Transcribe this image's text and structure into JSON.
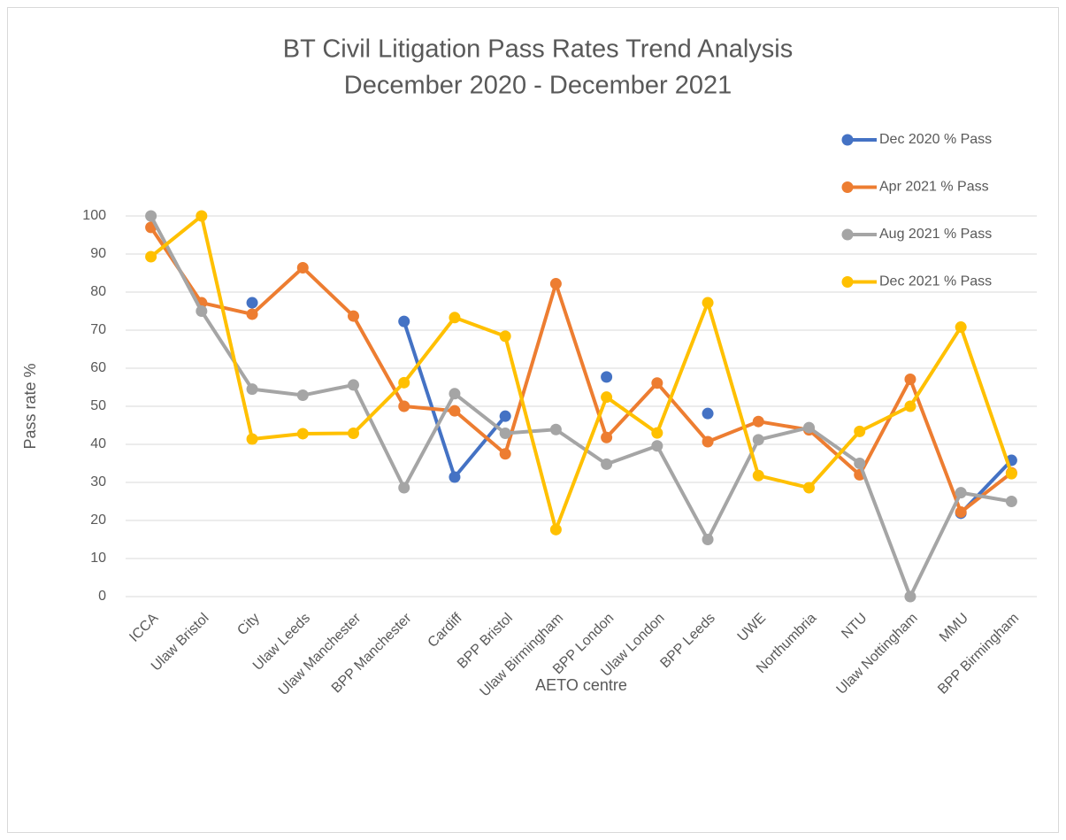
{
  "chart_data": {
    "type": "line",
    "title": "BT Civil Litigation Pass Rates Trend Analysis",
    "subtitle": "December 2020 - December 2021",
    "x_label": "AETO centre",
    "y_label": "Pass rate %",
    "categories": [
      "ICCA",
      "Ulaw Bristol",
      "City",
      "Ulaw Leeds",
      "Ulaw Manchester",
      "BPP Manchester",
      "Cardiff",
      "BPP Bristol",
      "Ulaw Birmingham",
      "BPP London",
      "Ulaw London",
      "BPP Leeds",
      "UWE",
      "Northumbria",
      "NTU",
      "Ulaw Nottingham",
      "MMU",
      "BPP Birmingham"
    ],
    "series": [
      {
        "name": "Dec 2020 % Pass",
        "color": "#4472c4",
        "values": [
          null,
          null,
          77.2,
          null,
          null,
          72.3,
          31.4,
          47.4,
          null,
          57.7,
          null,
          48.1,
          null,
          null,
          null,
          null,
          21.9,
          35.8
        ]
      },
      {
        "name": "Apr 2021 % Pass",
        "color": "#ed7d31",
        "values": [
          97,
          77.2,
          74.2,
          86.4,
          73.7,
          50,
          48.8,
          37.5,
          82.2,
          41.8,
          56.1,
          40.7,
          46,
          43.8,
          32,
          57.1,
          22.2,
          32.5
        ]
      },
      {
        "name": "Aug 2021 % Pass",
        "color": "#a5a5a5",
        "values": [
          100,
          75,
          54.5,
          52.9,
          55.6,
          28.6,
          53.3,
          42.9,
          43.9,
          34.8,
          39.6,
          15,
          41.2,
          44.4,
          35,
          0,
          27.3,
          25
        ]
      },
      {
        "name": "Dec 2021 % Pass",
        "color": "#ffc000",
        "values": [
          89.3,
          100,
          41.4,
          42.8,
          42.9,
          56.2,
          73.3,
          68.4,
          17.6,
          52.4,
          43,
          77.2,
          31.8,
          28.6,
          43.4,
          50,
          70.8,
          32.3
        ]
      }
    ],
    "ylim": [
      0,
      100
    ],
    "yticks": [
      0,
      10,
      20,
      30,
      40,
      50,
      60,
      70,
      80,
      90,
      100
    ],
    "grid": true,
    "legend": "top-right"
  }
}
